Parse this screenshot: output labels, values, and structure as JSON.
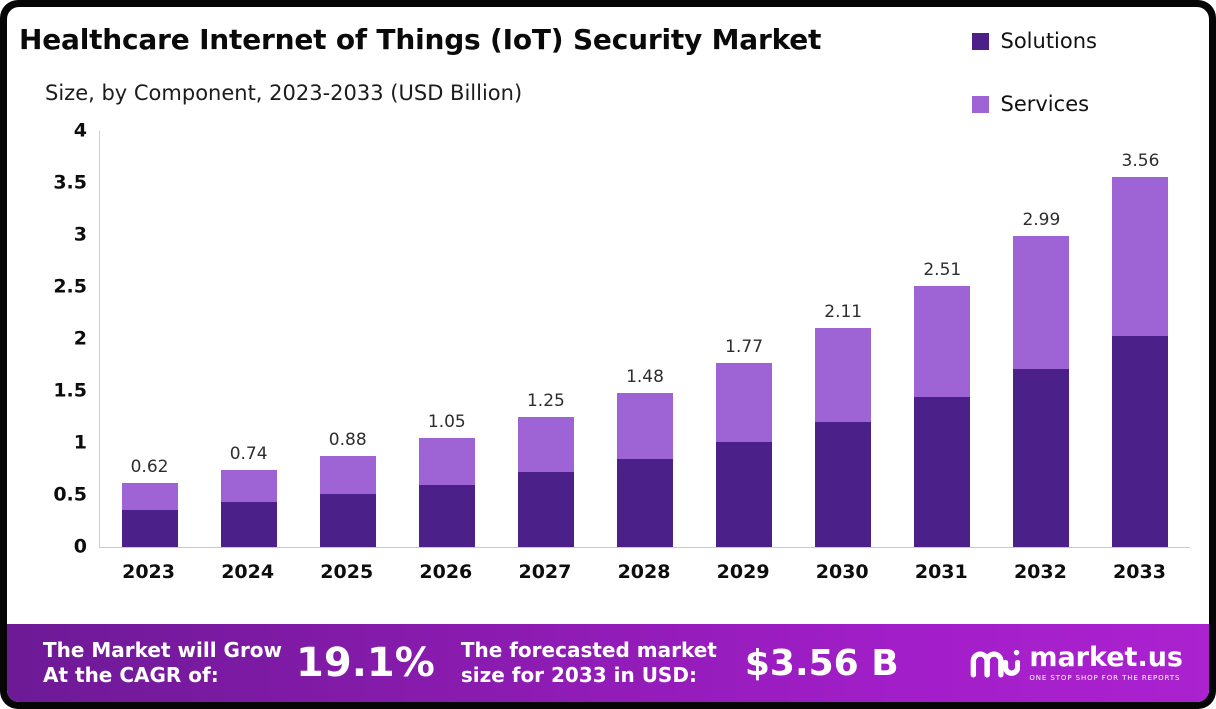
{
  "header": {
    "title": "Healthcare Internet of Things (IoT) Security Market",
    "subtitle": "Size, by Component, 2023-2033 (USD Billion)"
  },
  "legend": [
    {
      "label": "Solutions",
      "color": "#4b2189"
    },
    {
      "label": "Services",
      "color": "#9e63d5"
    }
  ],
  "chart_data": {
    "type": "bar",
    "stacked": true,
    "title": "Healthcare Internet of Things (IoT) Security Market Size, by Component, 2023-2033 (USD Billion)",
    "categories": [
      "2023",
      "2024",
      "2025",
      "2026",
      "2027",
      "2028",
      "2029",
      "2030",
      "2031",
      "2032",
      "2033"
    ],
    "series": [
      {
        "name": "Solutions",
        "color": "#4b2189",
        "values": [
          0.36,
          0.43,
          0.51,
          0.6,
          0.72,
          0.85,
          1.01,
          1.2,
          1.44,
          1.71,
          2.03
        ]
      },
      {
        "name": "Services",
        "color": "#9e63d5",
        "values": [
          0.26,
          0.31,
          0.37,
          0.45,
          0.53,
          0.63,
          0.76,
          0.91,
          1.07,
          1.28,
          1.53
        ]
      }
    ],
    "totals": [
      0.62,
      0.74,
      0.88,
      1.05,
      1.25,
      1.48,
      1.77,
      2.11,
      2.51,
      2.99,
      3.56
    ],
    "total_labels": [
      "0.62",
      "0.74",
      "0.88",
      "1.05",
      "1.25",
      "1.48",
      "1.77",
      "2.11",
      "2.51",
      "2.99",
      "3.56"
    ],
    "xlabel": "",
    "ylabel": "",
    "ylim": [
      0,
      4
    ],
    "yticks": [
      "0",
      "0.5",
      "1",
      "1.5",
      "2",
      "2.5",
      "3",
      "3.5",
      "4"
    ],
    "grid": false,
    "legend_position": "top-right"
  },
  "banner": {
    "cagr_label_line1": "The Market will Grow",
    "cagr_label_line2": "At the CAGR of:",
    "cagr_value": "19.1%",
    "forecast_label_line1": "The forecasted market",
    "forecast_label_line2": "size for 2033 in USD:",
    "forecast_value": "$3.56 B",
    "brand": "market.us",
    "brand_tagline": "ONE STOP SHOP FOR THE REPORTS"
  }
}
